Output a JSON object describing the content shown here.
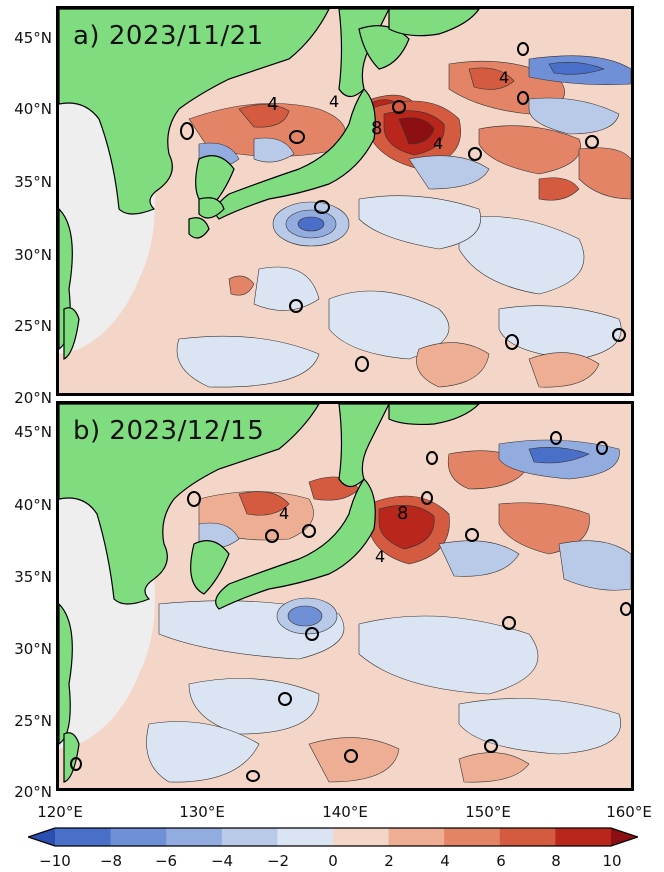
{
  "panels": [
    {
      "label": "a) 2023/11/21",
      "contour_labels": [
        "4",
        "4",
        "8",
        "4",
        "0",
        "0",
        "0",
        "0",
        "0",
        "0",
        "0",
        "0",
        "0",
        "4",
        "0"
      ]
    },
    {
      "label": "b) 2023/12/15",
      "contour_labels": [
        "4",
        "8",
        "4",
        "0",
        "0",
        "0",
        "0",
        "0",
        "0",
        "0",
        "0",
        "0",
        "0",
        "0",
        "0",
        "0"
      ]
    }
  ],
  "map": {
    "lon_range": [
      120,
      160
    ],
    "lat_range": [
      20,
      47
    ],
    "lon_ticks": [
      "120°E",
      "130°E",
      "140°E",
      "150°E",
      "160°E"
    ],
    "lat_ticks": [
      "20°N",
      "25°N",
      "30°N",
      "35°N",
      "40°N",
      "45°N"
    ],
    "colors": {
      "land": "#7fdc7f",
      "negative": "#6f8fd6",
      "positive": "#d2503a",
      "near_zero": "#f3d6c7",
      "continent_mask": "#eeeeee"
    }
  },
  "colorbar": {
    "min": -10,
    "max": 10,
    "tick_labels": [
      "−10",
      "−8",
      "−6",
      "−4",
      "−2",
      "0",
      "2",
      "4",
      "6",
      "8",
      "10"
    ],
    "colors": [
      "#2a4fb0",
      "#4a6fc8",
      "#6f8fd6",
      "#93acdf",
      "#b9c9e8",
      "#dbe4f2",
      "#f3d6c7",
      "#eeae93",
      "#e38466",
      "#d45a40",
      "#b8261c",
      "#8c0f12"
    ]
  }
}
